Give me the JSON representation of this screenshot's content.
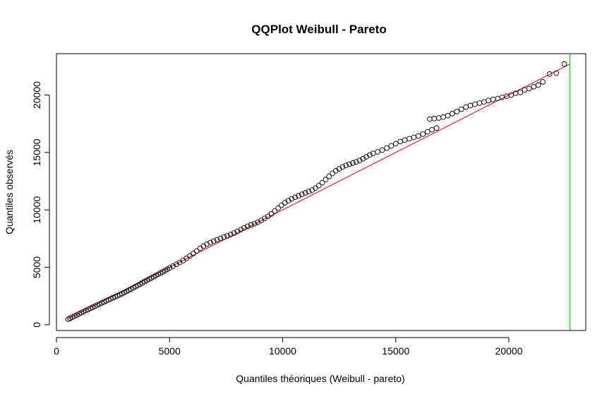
{
  "chart_data": {
    "type": "scatter",
    "title": "QQPlot Weibull - Pareto",
    "xlabel": "Quantiles théoriques (Weibull - pareto)",
    "ylabel": "Quantiles observés",
    "xlim": [
      0,
      23400
    ],
    "ylim": [
      -500,
      23600
    ],
    "x_ticks": [
      0,
      5000,
      10000,
      15000,
      20000
    ],
    "x_tick_labels": [
      "0",
      "5000",
      "10000",
      "15000",
      "20000"
    ],
    "y_ticks": [
      0,
      5000,
      10000,
      15000,
      20000
    ],
    "y_tick_labels": [
      "0",
      "5000",
      "10000",
      "15000",
      "20000"
    ],
    "grid": false,
    "legend": "none",
    "reference_line": {
      "x": [
        500,
        22700
      ],
      "y": [
        500,
        22700
      ],
      "color": "#ff0000"
    },
    "vertical_line": {
      "x": 22700,
      "color": "#00cc00"
    },
    "points_color": "#000000",
    "points": [
      [
        520,
        480
      ],
      [
        600,
        560
      ],
      [
        700,
        660
      ],
      [
        800,
        760
      ],
      [
        900,
        850
      ],
      [
        1000,
        950
      ],
      [
        1100,
        1050
      ],
      [
        1200,
        1140
      ],
      [
        1300,
        1240
      ],
      [
        1400,
        1330
      ],
      [
        1500,
        1430
      ],
      [
        1600,
        1520
      ],
      [
        1700,
        1610
      ],
      [
        1800,
        1710
      ],
      [
        1900,
        1800
      ],
      [
        2000,
        1900
      ],
      [
        2100,
        1990
      ],
      [
        2200,
        2080
      ],
      [
        2300,
        2170
      ],
      [
        2400,
        2260
      ],
      [
        2500,
        2350
      ],
      [
        2600,
        2440
      ],
      [
        2700,
        2530
      ],
      [
        2800,
        2620
      ],
      [
        2900,
        2710
      ],
      [
        3000,
        2810
      ],
      [
        3100,
        2910
      ],
      [
        3200,
        3010
      ],
      [
        3300,
        3110
      ],
      [
        3400,
        3220
      ],
      [
        3500,
        3330
      ],
      [
        3600,
        3430
      ],
      [
        3700,
        3540
      ],
      [
        3800,
        3650
      ],
      [
        3900,
        3760
      ],
      [
        4000,
        3870
      ],
      [
        4100,
        3980
      ],
      [
        4200,
        4080
      ],
      [
        4300,
        4180
      ],
      [
        4400,
        4290
      ],
      [
        4500,
        4400
      ],
      [
        4600,
        4500
      ],
      [
        4700,
        4610
      ],
      [
        4800,
        4720
      ],
      [
        4900,
        4830
      ],
      [
        5000,
        4950
      ],
      [
        5150,
        5100
      ],
      [
        5300,
        5260
      ],
      [
        5450,
        5420
      ],
      [
        5600,
        5590
      ],
      [
        5750,
        5790
      ],
      [
        5900,
        6000
      ],
      [
        6050,
        6200
      ],
      [
        6200,
        6420
      ],
      [
        6350,
        6650
      ],
      [
        6500,
        6850
      ],
      [
        6650,
        7020
      ],
      [
        6800,
        7150
      ],
      [
        6950,
        7280
      ],
      [
        7100,
        7400
      ],
      [
        7250,
        7520
      ],
      [
        7400,
        7630
      ],
      [
        7550,
        7740
      ],
      [
        7700,
        7860
      ],
      [
        7850,
        7980
      ],
      [
        8000,
        8120
      ],
      [
        8150,
        8280
      ],
      [
        8300,
        8430
      ],
      [
        8450,
        8570
      ],
      [
        8600,
        8690
      ],
      [
        8750,
        8800
      ],
      [
        8900,
        8930
      ],
      [
        9050,
        9080
      ],
      [
        9200,
        9260
      ],
      [
        9350,
        9440
      ],
      [
        9500,
        9650
      ],
      [
        9650,
        9900
      ],
      [
        9800,
        10150
      ],
      [
        9950,
        10400
      ],
      [
        10100,
        10620
      ],
      [
        10250,
        10800
      ],
      [
        10400,
        10960
      ],
      [
        10550,
        11100
      ],
      [
        10700,
        11230
      ],
      [
        10850,
        11360
      ],
      [
        11000,
        11480
      ],
      [
        11150,
        11600
      ],
      [
        11300,
        11730
      ],
      [
        11450,
        11900
      ],
      [
        11600,
        12120
      ],
      [
        11750,
        12370
      ],
      [
        11900,
        12640
      ],
      [
        12050,
        12920
      ],
      [
        12200,
        13180
      ],
      [
        12350,
        13400
      ],
      [
        12500,
        13580
      ],
      [
        12650,
        13740
      ],
      [
        12800,
        13870
      ],
      [
        12950,
        13980
      ],
      [
        13100,
        14080
      ],
      [
        13250,
        14180
      ],
      [
        13400,
        14300
      ],
      [
        13550,
        14450
      ],
      [
        13700,
        14620
      ],
      [
        13850,
        14780
      ],
      [
        14000,
        14920
      ],
      [
        14200,
        15050
      ],
      [
        14400,
        15200
      ],
      [
        14600,
        15380
      ],
      [
        14800,
        15570
      ],
      [
        15000,
        15770
      ],
      [
        15200,
        15950
      ],
      [
        15400,
        16080
      ],
      [
        15600,
        16200
      ],
      [
        15800,
        16310
      ],
      [
        16000,
        16430
      ],
      [
        16200,
        16600
      ],
      [
        16400,
        16800
      ],
      [
        16600,
        16980
      ],
      [
        16800,
        17120
      ],
      [
        16500,
        17900
      ],
      [
        16700,
        17950
      ],
      [
        16900,
        18000
      ],
      [
        17100,
        18080
      ],
      [
        17300,
        18200
      ],
      [
        17500,
        18380
      ],
      [
        17700,
        18560
      ],
      [
        17900,
        18760
      ],
      [
        18100,
        18950
      ],
      [
        18300,
        19080
      ],
      [
        18500,
        19200
      ],
      [
        18700,
        19300
      ],
      [
        18900,
        19400
      ],
      [
        19100,
        19520
      ],
      [
        19300,
        19620
      ],
      [
        19500,
        19700
      ],
      [
        19700,
        19800
      ],
      [
        19900,
        19900
      ],
      [
        20100,
        20000
      ],
      [
        20300,
        20150
      ],
      [
        20500,
        20230
      ],
      [
        20700,
        20450
      ],
      [
        20900,
        20560
      ],
      [
        21100,
        20720
      ],
      [
        21300,
        20870
      ],
      [
        21500,
        21150
      ],
      [
        21800,
        21830
      ],
      [
        22100,
        21900
      ],
      [
        22450,
        22700
      ]
    ]
  }
}
